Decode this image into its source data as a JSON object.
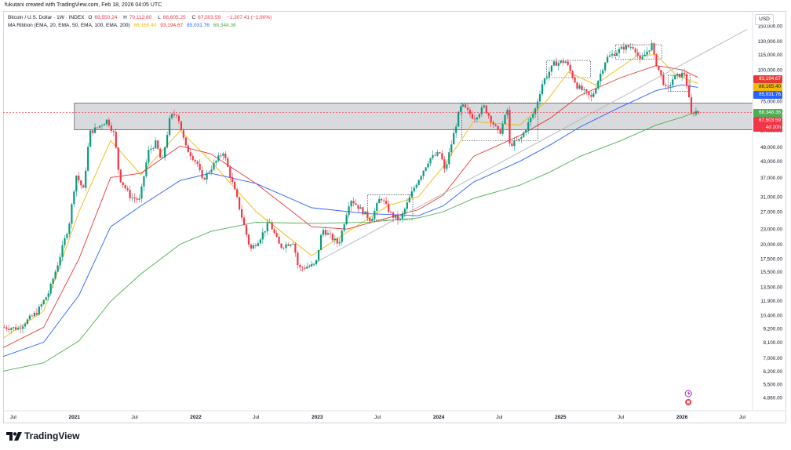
{
  "caption": "fukutani created with TradingView.com, Feb 18, 2026 04:05 UTC",
  "legend": {
    "symbol": "Bitcoin / U.S. Dollar · 1W · INDEX",
    "o_label": "O",
    "o": "69,550.24",
    "h_label": "H",
    "h": "70,112.80",
    "l_label": "L",
    "l": "66,605.25",
    "c_label": "C",
    "c": "67,503.59",
    "chg": "−1,307.41 (−1.90%)",
    "ribbon_label": "MA Ribbon (EMA, 20, EMA, 50, EMA, 100, EMA, 200)",
    "ema20": "88,165.40",
    "ema50": "93,194.67",
    "ema100": "85,031.76",
    "ema200": "68,348.36"
  },
  "currency": "USD",
  "price_boxes": {
    "ema50": "93,194.67",
    "ema20": "88,165.40",
    "ema100": "85,031.76",
    "ema200": "68,348.36",
    "close": "67,503.59",
    "countdown": "4d 20h"
  },
  "colors": {
    "up": "#089981",
    "down": "#f23645",
    "ema20": "#f0b90b",
    "ema50": "#e53935",
    "ema100": "#2962ff",
    "ema200": "#4caf50",
    "zone": "#787b86"
  },
  "watermark": "TradingView",
  "chart_data": {
    "type": "candlestick",
    "title": "Bitcoin / U.S. Dollar · 1W · INDEX",
    "y_scale": "log",
    "y_ticks": [
      "150,000.00",
      "130,000.00",
      "115,000.00",
      "100,000.00",
      "85,000.00",
      "75,000.00",
      "57,000.00",
      "49,000.00",
      "43,000.00",
      "37,000.00",
      "31,000.00",
      "27,000.00",
      "23,000.00",
      "20,000.00",
      "17,500.00",
      "15,500.00",
      "13,500.00",
      "11,900.00",
      "10,400.00",
      "9,200.00",
      "8,100.00",
      "7,000.00",
      "6,200.00",
      "5,500.00",
      "4,860.00"
    ],
    "x_ticks": [
      "Jul",
      "2021",
      "Jul",
      "2022",
      "Jul",
      "2023",
      "Jul",
      "2024",
      "Jul",
      "2025",
      "Jul",
      "2026",
      "Jul"
    ],
    "x_range": [
      "2020-06",
      "2026-08"
    ],
    "anchors": [
      [
        "2020-06-01",
        9300
      ],
      [
        "2020-07-20",
        9200
      ],
      [
        "2020-09-15",
        10700
      ],
      [
        "2020-10-20",
        12800
      ],
      [
        "2020-11-15",
        16500
      ],
      [
        "2020-12-20",
        24000
      ],
      [
        "2021-01-10",
        38000
      ],
      [
        "2021-02-01",
        33000
      ],
      [
        "2021-02-20",
        56000
      ],
      [
        "2021-03-10",
        58000
      ],
      [
        "2021-04-14",
        63000
      ],
      [
        "2021-05-05",
        55000
      ],
      [
        "2021-05-20",
        37000
      ],
      [
        "2021-06-22",
        31000
      ],
      [
        "2021-07-20",
        30000
      ],
      [
        "2021-08-15",
        47000
      ],
      [
        "2021-09-07",
        51000
      ],
      [
        "2021-09-25",
        42000
      ],
      [
        "2021-10-20",
        65000
      ],
      [
        "2021-11-10",
        67000
      ],
      [
        "2021-12-05",
        49000
      ],
      [
        "2022-01-10",
        42000
      ],
      [
        "2022-01-24",
        36000
      ],
      [
        "2022-03-28",
        47000
      ],
      [
        "2022-05-10",
        30000
      ],
      [
        "2022-06-18",
        19000
      ],
      [
        "2022-07-15",
        21000
      ],
      [
        "2022-08-14",
        24500
      ],
      [
        "2022-09-15",
        19500
      ],
      [
        "2022-10-25",
        20500
      ],
      [
        "2022-11-09",
        16000
      ],
      [
        "2022-12-31",
        16500
      ],
      [
        "2023-01-20",
        23000
      ],
      [
        "2023-03-10",
        20000
      ],
      [
        "2023-04-14",
        30500
      ],
      [
        "2023-06-15",
        25000
      ],
      [
        "2023-07-14",
        31000
      ],
      [
        "2023-08-17",
        26000
      ],
      [
        "2023-09-11",
        25000
      ],
      [
        "2023-10-24",
        34000
      ],
      [
        "2023-12-08",
        44000
      ],
      [
        "2024-01-10",
        46500
      ],
      [
        "2024-01-23",
        39000
      ],
      [
        "2024-03-05",
        67000
      ],
      [
        "2024-03-14",
        72000
      ],
      [
        "2024-04-20",
        64000
      ],
      [
        "2024-05-20",
        71000
      ],
      [
        "2024-07-05",
        55000
      ],
      [
        "2024-07-29",
        69000
      ],
      [
        "2024-08-05",
        50000
      ],
      [
        "2024-09-06",
        52500
      ],
      [
        "2024-10-20",
        69000
      ],
      [
        "2024-11-12",
        89000
      ],
      [
        "2024-12-17",
        106000
      ],
      [
        "2025-01-20",
        108000
      ],
      [
        "2025-02-24",
        86000
      ],
      [
        "2025-04-08",
        77000
      ],
      [
        "2025-05-22",
        111000
      ],
      [
        "2025-07-14",
        123000
      ],
      [
        "2025-08-14",
        124000
      ],
      [
        "2025-09-01",
        108000
      ],
      [
        "2025-10-06",
        126000
      ],
      [
        "2025-10-14",
        111000
      ],
      [
        "2025-11-20",
        82000
      ],
      [
        "2025-12-10",
        93000
      ],
      [
        "2026-01-14",
        97000
      ],
      [
        "2026-02-05",
        62000
      ],
      [
        "2026-02-10",
        69000
      ],
      [
        "2026-02-18",
        67500
      ]
    ],
    "ema_lines": {
      "ema20": [
        [
          "2020-06-01",
          8400
        ],
        [
          "2020-10-01",
          10800
        ],
        [
          "2021-01-15",
          27000
        ],
        [
          "2021-04-20",
          52000
        ],
        [
          "2021-07-20",
          38000
        ],
        [
          "2021-11-15",
          57000
        ],
        [
          "2022-02-15",
          43000
        ],
        [
          "2022-07-01",
          27000
        ],
        [
          "2022-12-15",
          18000
        ],
        [
          "2023-03-01",
          21000
        ],
        [
          "2023-08-01",
          28500
        ],
        [
          "2023-11-01",
          31000
        ],
        [
          "2024-01-15",
          41000
        ],
        [
          "2024-04-15",
          62000
        ],
        [
          "2024-09-01",
          60000
        ],
        [
          "2024-11-20",
          75000
        ],
        [
          "2025-01-25",
          98000
        ],
        [
          "2025-04-15",
          87000
        ],
        [
          "2025-08-20",
          114000
        ],
        [
          "2025-10-15",
          115000
        ],
        [
          "2025-12-15",
          95000
        ],
        [
          "2026-02-18",
          88165
        ]
      ],
      "ema50": [
        [
          "2020-06-01",
          7700
        ],
        [
          "2020-10-01",
          9300
        ],
        [
          "2021-01-15",
          17500
        ],
        [
          "2021-04-20",
          37000
        ],
        [
          "2021-07-20",
          38500
        ],
        [
          "2021-11-15",
          49500
        ],
        [
          "2022-02-15",
          46000
        ],
        [
          "2022-07-01",
          35000
        ],
        [
          "2022-12-15",
          23500
        ],
        [
          "2023-04-01",
          23000
        ],
        [
          "2023-08-01",
          25500
        ],
        [
          "2023-11-01",
          27500
        ],
        [
          "2024-01-15",
          31500
        ],
        [
          "2024-04-15",
          45000
        ],
        [
          "2024-09-01",
          54500
        ],
        [
          "2024-12-01",
          64000
        ],
        [
          "2025-03-01",
          79000
        ],
        [
          "2025-07-01",
          93000
        ],
        [
          "2025-10-15",
          104000
        ],
        [
          "2026-01-01",
          100000
        ],
        [
          "2026-02-18",
          93195
        ]
      ],
      "ema100": [
        [
          "2020-06-01",
          7100
        ],
        [
          "2020-10-01",
          8100
        ],
        [
          "2021-01-15",
          12500
        ],
        [
          "2021-04-20",
          23500
        ],
        [
          "2021-07-20",
          28500
        ],
        [
          "2021-11-15",
          36000
        ],
        [
          "2022-02-15",
          38500
        ],
        [
          "2022-07-01",
          35000
        ],
        [
          "2022-12-15",
          28000
        ],
        [
          "2023-06-01",
          26500
        ],
        [
          "2023-11-01",
          26000
        ],
        [
          "2024-01-15",
          28500
        ],
        [
          "2024-04-15",
          35500
        ],
        [
          "2024-09-01",
          43000
        ],
        [
          "2024-12-01",
          50000
        ],
        [
          "2025-03-01",
          59000
        ],
        [
          "2025-07-01",
          71000
        ],
        [
          "2025-10-15",
          82500
        ],
        [
          "2026-01-01",
          87000
        ],
        [
          "2026-02-18",
          85032
        ]
      ],
      "ema200": [
        [
          "2020-06-01",
          6200
        ],
        [
          "2020-10-01",
          6700
        ],
        [
          "2021-01-15",
          8200
        ],
        [
          "2021-04-20",
          11800
        ],
        [
          "2021-07-20",
          15200
        ],
        [
          "2021-11-15",
          20000
        ],
        [
          "2022-02-15",
          22500
        ],
        [
          "2022-07-01",
          24500
        ],
        [
          "2022-12-15",
          24200
        ],
        [
          "2023-06-01",
          24500
        ],
        [
          "2023-11-01",
          25500
        ],
        [
          "2024-01-15",
          27000
        ],
        [
          "2024-04-15",
          30500
        ],
        [
          "2024-09-01",
          34500
        ],
        [
          "2024-12-01",
          39000
        ],
        [
          "2025-03-01",
          45000
        ],
        [
          "2025-07-01",
          52000
        ],
        [
          "2025-10-15",
          60000
        ],
        [
          "2026-01-01",
          64500
        ],
        [
          "2026-02-18",
          68348
        ]
      ]
    },
    "trendline": [
      [
        "2022-11-09",
        15600
      ],
      [
        "2026-07-15",
        145000
      ]
    ],
    "horizontal_zone": {
      "x": [
        "2021-01-01",
        "2026-08-01"
      ],
      "y": [
        57500,
        73500
      ]
    },
    "dotted_boxes": [
      {
        "x": [
          "2023-06-01",
          "2023-10-15"
        ],
        "y": [
          25000,
          31500
        ]
      },
      {
        "x": [
          "2024-03-10",
          "2024-10-25"
        ],
        "y": [
          52000,
          73500
        ]
      },
      {
        "x": [
          "2024-11-20",
          "2025-04-01"
        ],
        "y": [
          93000,
          109000
        ]
      },
      {
        "x": [
          "2025-11-20",
          "2026-01-25"
        ],
        "y": [
          82000,
          95000
        ]
      },
      {
        "x": [
          "2025-06-15",
          "2025-11-01"
        ],
        "y": [
          110000,
          126000
        ]
      }
    ],
    "current_price": 67503.59
  }
}
